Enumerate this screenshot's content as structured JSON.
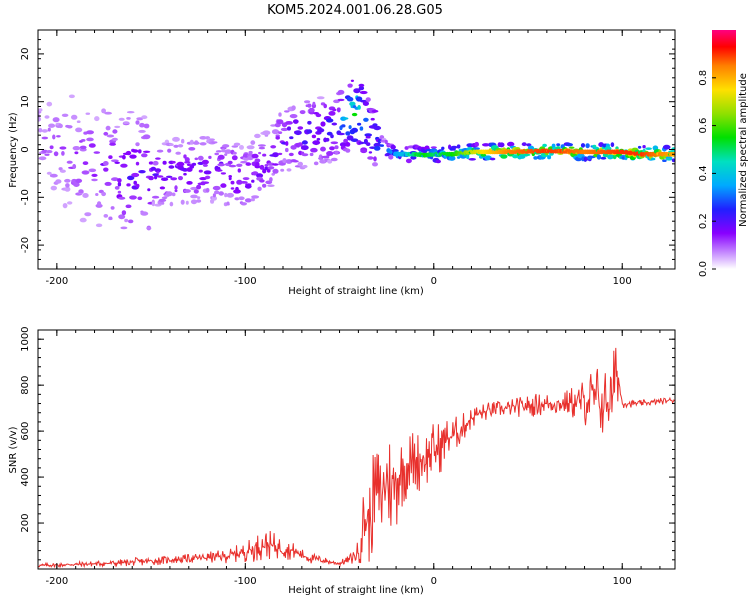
{
  "title": "KOM5.2024.001.06.28.G05",
  "chart_data": [
    {
      "type": "heatmap",
      "xlabel": "Height of straight line (km)",
      "ylabel": "Frequency (Hz)",
      "xlim": [
        -210,
        128
      ],
      "ylim": [
        -25,
        25
      ],
      "xticks": [
        -200,
        -100,
        0,
        100
      ],
      "yticks": [
        -20,
        -10,
        0,
        10,
        20
      ],
      "colorbar": {
        "label": "Normalized spectral amplitude",
        "range": [
          0,
          1
        ],
        "ticks": [
          "0.0",
          "0.2",
          "0.4",
          "0.6",
          "0.8"
        ],
        "tick_values": [
          0,
          0.2,
          0.4,
          0.6,
          0.8
        ],
        "colormap": "rainbow (white-violet-blue-cyan-green-yellow-red-magenta)"
      },
      "ridge": {
        "x": [
          -210,
          -180,
          -160,
          -140,
          -120,
          -100,
          -90,
          -80,
          -70,
          -60,
          -50,
          -45,
          -42,
          -38,
          -35,
          -30,
          -25,
          -20,
          -15,
          -10,
          -5,
          0,
          10,
          20,
          40,
          60,
          80,
          100,
          110,
          128
        ],
        "y": [
          2,
          -3,
          -6,
          -5,
          -4,
          -6,
          -3,
          2,
          3,
          4,
          5,
          7,
          8,
          7,
          5,
          2,
          0,
          -1,
          -1,
          -1,
          -1.2,
          -1,
          -1,
          -0.5,
          -0.5,
          -0.3,
          -0.5,
          -0.5,
          -1,
          -1
        ],
        "amplitude": [
          0.1,
          0.15,
          0.2,
          0.2,
          0.2,
          0.2,
          0.2,
          0.2,
          0.25,
          0.25,
          0.3,
          0.4,
          0.55,
          0.45,
          0.35,
          0.3,
          0.3,
          0.35,
          0.4,
          0.5,
          0.55,
          0.5,
          0.55,
          0.7,
          0.85,
          0.9,
          0.85,
          0.9,
          0.9,
          0.8
        ]
      },
      "grid": false
    },
    {
      "type": "line",
      "xlabel": "Height of straight line (km)",
      "ylabel": "SNR (v/v)",
      "xlim": [
        -210,
        128
      ],
      "ylim": [
        0,
        1040
      ],
      "xticks": [
        -200,
        -100,
        0,
        100
      ],
      "yticks": [
        200,
        400,
        600,
        800,
        1000
      ],
      "color": "#e8302c",
      "series": [
        {
          "x": [
            -210,
            -190,
            -170,
            -160,
            -150,
            -140,
            -130,
            -120,
            -110,
            -100,
            -95,
            -90,
            -85,
            -80,
            -75,
            -70,
            -65,
            -60,
            -55,
            -50,
            -45,
            -40,
            -37,
            -34,
            -31,
            -28,
            -25,
            -22,
            -20,
            -17,
            -14,
            -10,
            -6,
            -2,
            2,
            6,
            10,
            14,
            18,
            22,
            26,
            30,
            40,
            50,
            60,
            70,
            80,
            85,
            90,
            95,
            97,
            100,
            110,
            120,
            128
          ],
          "y": [
            15,
            20,
            25,
            30,
            35,
            40,
            45,
            50,
            55,
            75,
            90,
            110,
            100,
            90,
            80,
            60,
            45,
            40,
            30,
            25,
            40,
            70,
            220,
            200,
            350,
            300,
            400,
            350,
            380,
            430,
            460,
            470,
            480,
            500,
            520,
            560,
            580,
            600,
            640,
            670,
            680,
            690,
            700,
            710,
            720,
            720,
            730,
            740,
            720,
            740,
            880,
            720,
            720,
            730,
            735
          ],
          "spike_amplitude": [
            10,
            12,
            15,
            18,
            20,
            20,
            20,
            25,
            30,
            45,
            60,
            70,
            60,
            50,
            40,
            30,
            25,
            20,
            15,
            12,
            20,
            60,
            180,
            200,
            220,
            260,
            300,
            240,
            220,
            180,
            160,
            150,
            140,
            140,
            130,
            110,
            90,
            70,
            60,
            50,
            45,
            40,
            40,
            50,
            55,
            60,
            110,
            180,
            160,
            200,
            160,
            20,
            15,
            15,
            15
          ]
        }
      ],
      "grid": false
    }
  ]
}
